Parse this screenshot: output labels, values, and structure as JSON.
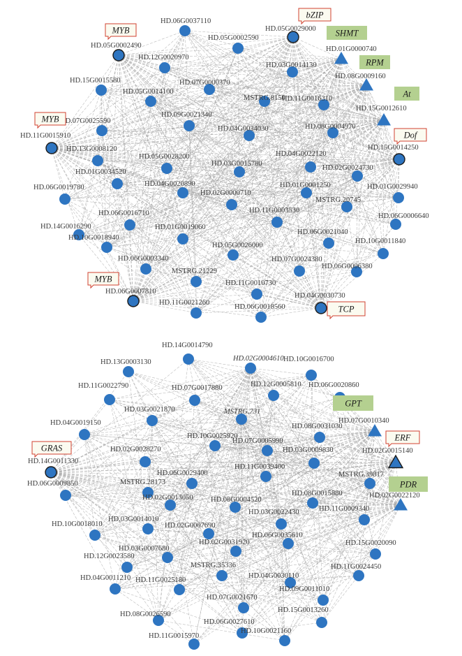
{
  "networks": [
    {
      "nodes": [
        {
          "id": "HD.06G0037110",
          "shape": "circle"
        },
        {
          "id": "HD.05G0029000",
          "shape": "circle-hub",
          "tag": "bZIP",
          "tag_style": "red"
        },
        {
          "id": "HD.05G0002490",
          "shape": "circle-hub",
          "tag": "MYB",
          "tag_style": "red"
        },
        {
          "id": "HD.05G0002590",
          "shape": "circle"
        },
        {
          "id": "HD.01G0000740",
          "shape": "triangle",
          "tag": "SHMT",
          "tag_style": "green"
        },
        {
          "id": "HD.12G0020970",
          "shape": "circle"
        },
        {
          "id": "HD.03G0014130",
          "shape": "circle"
        },
        {
          "id": "HD.08G0009160",
          "shape": "triangle",
          "tag": "RPM",
          "tag_style": "green"
        },
        {
          "id": "HD.15G0015580",
          "shape": "circle"
        },
        {
          "id": "HD.07G0000370",
          "shape": "circle"
        },
        {
          "id": "HD.05G0014100",
          "shape": "circle"
        },
        {
          "id": "MSTRG.8150",
          "shape": "circle"
        },
        {
          "id": "HD.11G0016310",
          "shape": "circle"
        },
        {
          "id": "HD.15G0012610",
          "shape": "triangle",
          "tag": "At",
          "tag_style": "green"
        },
        {
          "id": "HD.09G0021340",
          "shape": "circle"
        },
        {
          "id": "HD.07G0025590",
          "shape": "circle"
        },
        {
          "id": "HD.04G0034030",
          "shape": "circle"
        },
        {
          "id": "HD.08G0004970",
          "shape": "circle"
        },
        {
          "id": "HD.11G0015910",
          "shape": "circle-hub",
          "tag": "MYB",
          "tag_style": "red"
        },
        {
          "id": "HD.15G0014250",
          "shape": "circle-hub",
          "tag": "Dof",
          "tag_style": "red"
        },
        {
          "id": "HD.13G0008120",
          "shape": "circle"
        },
        {
          "id": "HD.05G0028200",
          "shape": "circle"
        },
        {
          "id": "HD.03G0015780",
          "shape": "circle"
        },
        {
          "id": "HD.04G0022120",
          "shape": "circle"
        },
        {
          "id": "HD.01G0034520",
          "shape": "circle"
        },
        {
          "id": "HD.02G0024730",
          "shape": "circle"
        },
        {
          "id": "HD.06G0019780",
          "shape": "circle"
        },
        {
          "id": "HD.04G0020890",
          "shape": "circle"
        },
        {
          "id": "HD.01G0001250",
          "shape": "circle"
        },
        {
          "id": "HD.01G0029940",
          "shape": "circle"
        },
        {
          "id": "HD.02G0000710",
          "shape": "circle"
        },
        {
          "id": "MSTRG.20745",
          "shape": "circle"
        },
        {
          "id": "HD.06G0016710",
          "shape": "circle"
        },
        {
          "id": "HD.11G0003530",
          "shape": "circle"
        },
        {
          "id": "HD.06G0006640",
          "shape": "circle"
        },
        {
          "id": "HD.14G0016290",
          "shape": "circle"
        },
        {
          "id": "HD.01G0019060",
          "shape": "circle"
        },
        {
          "id": "HD.06G0021040",
          "shape": "circle"
        },
        {
          "id": "HD.10G0018940",
          "shape": "circle"
        },
        {
          "id": "HD.10G0011840",
          "shape": "circle"
        },
        {
          "id": "HD.05G0026000",
          "shape": "circle"
        },
        {
          "id": "HD.06G0003340",
          "shape": "circle"
        },
        {
          "id": "HD.07G0024380",
          "shape": "circle"
        },
        {
          "id": "HD.06G0006380",
          "shape": "circle"
        },
        {
          "id": "MSTRG.21229",
          "shape": "circle"
        },
        {
          "id": "HD.06G0007810",
          "shape": "circle-hub",
          "tag": "MYB",
          "tag_style": "red"
        },
        {
          "id": "HD.11G0010730",
          "shape": "circle"
        },
        {
          "id": "HD.04G0030730",
          "shape": "circle-hub",
          "tag": "TCP",
          "tag_style": "red"
        },
        {
          "id": "HD.11G0021260",
          "shape": "circle"
        },
        {
          "id": "HD.06G0018560",
          "shape": "circle"
        }
      ]
    },
    {
      "nodes": [
        {
          "id": "HD.14G0014790",
          "shape": "circle"
        },
        {
          "id": "HD.02G0004610",
          "shape": "circle",
          "italic": true
        },
        {
          "id": "HD.13G0003130",
          "shape": "circle"
        },
        {
          "id": "HD.10G0016700",
          "shape": "circle"
        },
        {
          "id": "HD.11G0022790",
          "shape": "circle"
        },
        {
          "id": "HD.07G0017880",
          "shape": "circle"
        },
        {
          "id": "HD.12G0005810",
          "shape": "circle"
        },
        {
          "id": "HD.06G0020860",
          "shape": "circle"
        },
        {
          "id": "HD.03G0021870",
          "shape": "circle"
        },
        {
          "id": "MSTRG.731",
          "shape": "circle",
          "italic": true
        },
        {
          "id": "HD.07G0010340",
          "shape": "triangle",
          "tag": "GPT",
          "tag_style": "green"
        },
        {
          "id": "HD.04G0019150",
          "shape": "circle"
        },
        {
          "id": "HD.08G0031030",
          "shape": "circle"
        },
        {
          "id": "HD.10G0025920",
          "shape": "circle"
        },
        {
          "id": "HD.07G0005990",
          "shape": "circle"
        },
        {
          "id": "HD.02G0028270",
          "shape": "circle"
        },
        {
          "id": "HD.03G0009830",
          "shape": "circle"
        },
        {
          "id": "HD.02G0015140",
          "shape": "triangle-hub",
          "tag": "ERF",
          "tag_style": "red"
        },
        {
          "id": "HD.14G0011330",
          "shape": "circle-hub",
          "tag": "GRAS",
          "tag_style": "red"
        },
        {
          "id": "HD.06G0029400",
          "shape": "circle"
        },
        {
          "id": "HD.11G0039400",
          "shape": "circle"
        },
        {
          "id": "MSTRG.39817",
          "shape": "circle"
        },
        {
          "id": "HD.02G0022120",
          "shape": "triangle",
          "tag": "PDR",
          "tag_style": "green"
        },
        {
          "id": "MSTRG.28173",
          "shape": "circle"
        },
        {
          "id": "HD.06G0009850",
          "shape": "circle"
        },
        {
          "id": "HD.02G0013050",
          "shape": "circle"
        },
        {
          "id": "HD.08G0004520",
          "shape": "circle"
        },
        {
          "id": "HD.08G0015880",
          "shape": "circle"
        },
        {
          "id": "HD.03G0014010",
          "shape": "circle"
        },
        {
          "id": "HD.03G0022430",
          "shape": "circle"
        },
        {
          "id": "HD.11G0009340",
          "shape": "circle"
        },
        {
          "id": "HD.10G0018010",
          "shape": "circle"
        },
        {
          "id": "HD.02G0007690",
          "shape": "circle"
        },
        {
          "id": "HD.03G0007680",
          "shape": "circle"
        },
        {
          "id": "HD.02G0031920",
          "shape": "circle"
        },
        {
          "id": "HD.06G0035610",
          "shape": "circle"
        },
        {
          "id": "HD.15G0020090",
          "shape": "circle"
        },
        {
          "id": "HD.12G0023580",
          "shape": "circle"
        },
        {
          "id": "MSTRG.35336",
          "shape": "circle"
        },
        {
          "id": "HD.11G0025180",
          "shape": "circle"
        },
        {
          "id": "HD.04G0030110",
          "shape": "circle"
        },
        {
          "id": "HD.11G0024450",
          "shape": "circle"
        },
        {
          "id": "HD.04G0011210",
          "shape": "circle"
        },
        {
          "id": "HD.07G0021670",
          "shape": "circle"
        },
        {
          "id": "HD.09G0011010",
          "shape": "circle"
        },
        {
          "id": "HD.08G0026590",
          "shape": "circle"
        },
        {
          "id": "HD.15G0013260",
          "shape": "circle"
        },
        {
          "id": "HD.06G0027610",
          "shape": "circle"
        },
        {
          "id": "HD.10G0021160",
          "shape": "circle"
        },
        {
          "id": "HD.11G0015970",
          "shape": "circle"
        }
      ]
    }
  ],
  "colors": {
    "node_fill": "#2e75c1",
    "hub_stroke": "#1a1a1a",
    "edge": "#a6a6a6",
    "label_text": "#3a3a3a",
    "tag_green_fill": "#b4d090",
    "tag_red_fill": "#fbfbf0",
    "tag_red_stroke": "#d04030"
  },
  "legend": "none"
}
